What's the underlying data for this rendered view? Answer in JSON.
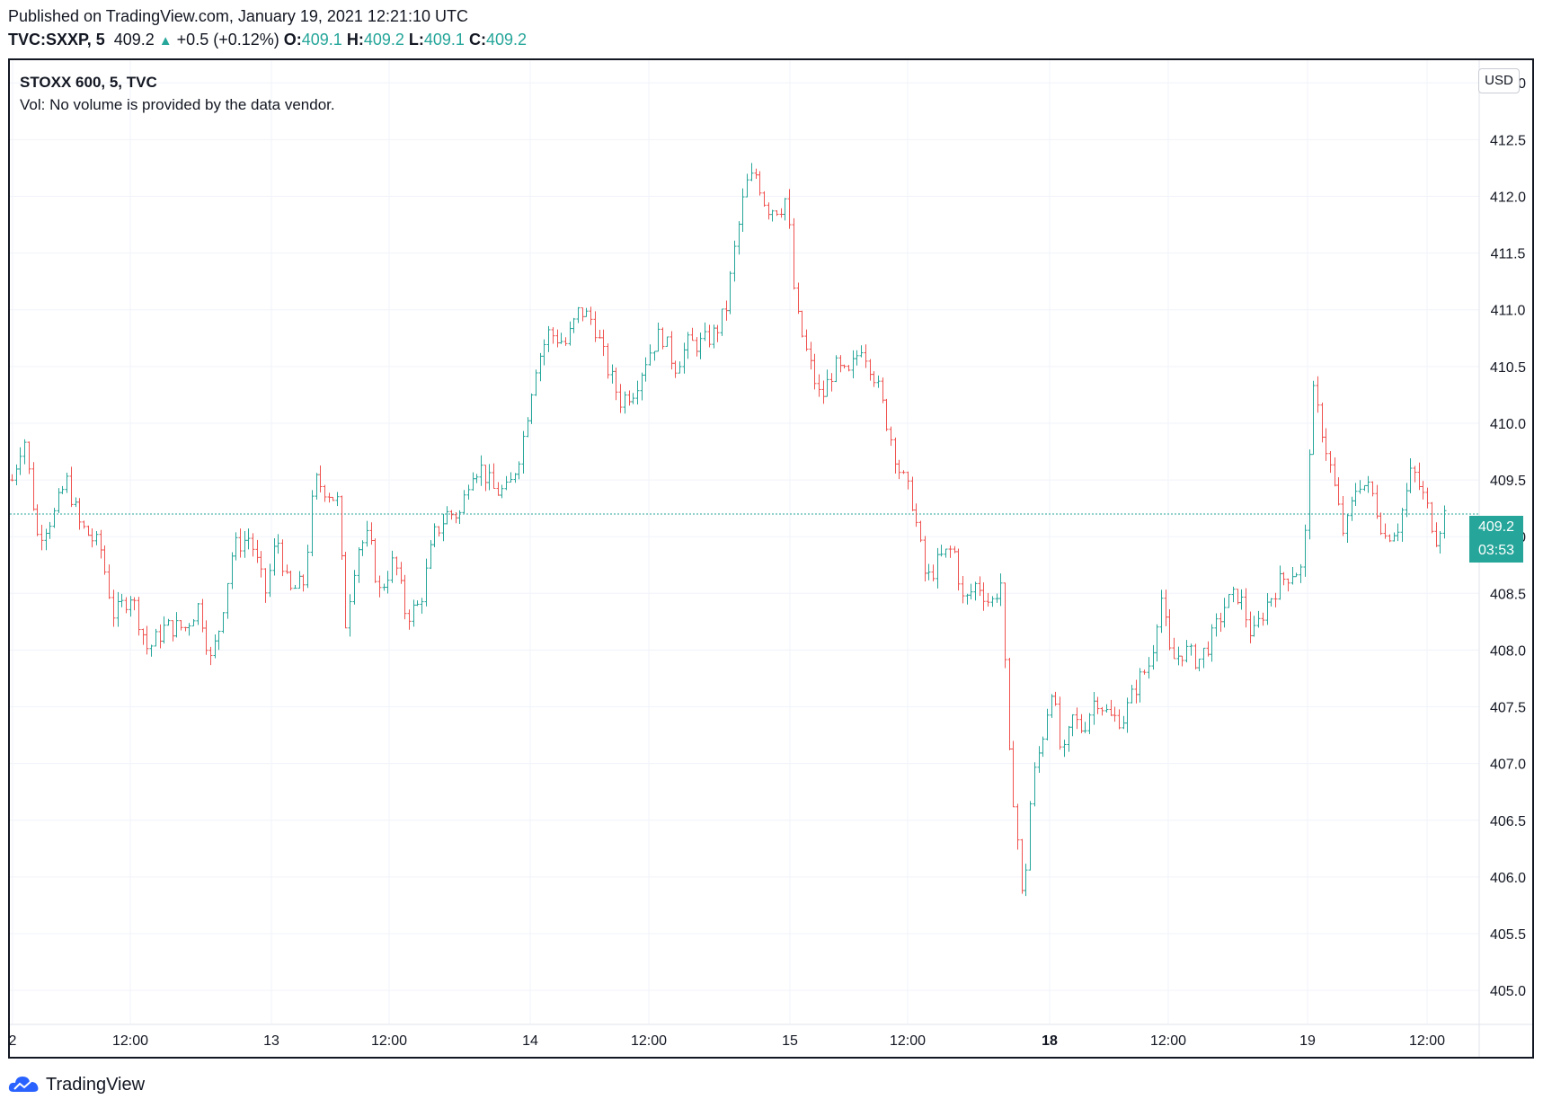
{
  "header": {
    "published": "Published on TradingView.com, January 19, 2021 12:21:10 UTC",
    "symbol": "TVC:SXXP, 5",
    "last": "409.2",
    "change": "+0.5 (+0.12%)",
    "o_label": "O:",
    "o_value": "409.1",
    "h_label": "H:",
    "h_value": "409.2",
    "l_label": "L:",
    "l_value": "409.1",
    "c_label": "C:",
    "c_value": "409.2"
  },
  "legend": {
    "title": "STOXX 600, 5, TVC",
    "volume_note": "Vol: No volume is provided by the data vendor."
  },
  "currency_button": "USD",
  "price_label": "409.2",
  "countdown_label": "03:53",
  "branding": "TradingView",
  "colors": {
    "up": "#26a69a",
    "down": "#ef5350",
    "grid": "#f0f3fa",
    "text": "#131722"
  },
  "chart_data": {
    "type": "ohlc",
    "yaxis": {
      "min": 404.7,
      "max": 413.2,
      "ticks": [
        405.0,
        405.5,
        406.0,
        406.5,
        407.0,
        407.5,
        408.0,
        408.5,
        409.0,
        409.5,
        410.0,
        410.5,
        411.0,
        411.5,
        412.0,
        412.5,
        413.0
      ],
      "position": "right",
      "labels": [
        "405.0",
        "405.5",
        "406.0",
        "406.5",
        "407.0",
        "407.5",
        "408.0",
        "408.5",
        "409.0",
        "409.5",
        "410.0",
        "410.5",
        "411.0",
        "411.5",
        "412.0",
        "412.5",
        "413.0"
      ]
    },
    "xaxis": {
      "ticks": [
        {
          "label": "2",
          "bold": false
        },
        {
          "label": "12:00",
          "bold": false
        },
        {
          "label": "13",
          "bold": false
        },
        {
          "label": "12:00",
          "bold": false
        },
        {
          "label": "14",
          "bold": false
        },
        {
          "label": "12:00",
          "bold": false
        },
        {
          "label": "15",
          "bold": false
        },
        {
          "label": "12:00",
          "bold": false
        },
        {
          "label": "18",
          "bold": true
        },
        {
          "label": "12:00",
          "bold": false
        },
        {
          "label": "19",
          "bold": false
        },
        {
          "label": "12:00",
          "bold": false
        }
      ]
    },
    "current_price": 409.2,
    "price_path": [
      {
        "t": 0.0,
        "p": 409.5
      },
      {
        "t": 0.7,
        "p": 409.9
      },
      {
        "t": 1.5,
        "p": 409.0
      },
      {
        "t": 2.5,
        "p": 409.2
      },
      {
        "t": 3.2,
        "p": 409.5
      },
      {
        "t": 4.0,
        "p": 409.1
      },
      {
        "t": 5.2,
        "p": 408.9
      },
      {
        "t": 6.0,
        "p": 408.3
      },
      {
        "t": 7.0,
        "p": 408.5
      },
      {
        "t": 8.0,
        "p": 408.0
      },
      {
        "t": 9.0,
        "p": 408.2
      },
      {
        "t": 10.2,
        "p": 408.2
      },
      {
        "t": 11.0,
        "p": 408.4
      },
      {
        "t": 11.7,
        "p": 407.9
      },
      {
        "t": 12.2,
        "p": 408.2
      },
      {
        "t": 13.0,
        "p": 408.9
      },
      {
        "t": 14.0,
        "p": 409.0
      },
      {
        "t": 14.9,
        "p": 408.5
      },
      {
        "t": 15.6,
        "p": 409.0
      },
      {
        "t": 16.3,
        "p": 408.5
      },
      {
        "t": 17.2,
        "p": 408.6
      },
      {
        "t": 17.8,
        "p": 409.5
      },
      {
        "t": 18.6,
        "p": 409.4
      },
      {
        "t": 19.2,
        "p": 409.3
      },
      {
        "t": 19.6,
        "p": 408.2
      },
      {
        "t": 20.3,
        "p": 408.9
      },
      {
        "t": 21.0,
        "p": 409.0
      },
      {
        "t": 21.6,
        "p": 408.5
      },
      {
        "t": 22.5,
        "p": 408.8
      },
      {
        "t": 23.2,
        "p": 408.3
      },
      {
        "t": 24.0,
        "p": 408.4
      },
      {
        "t": 24.8,
        "p": 409.0
      },
      {
        "t": 25.6,
        "p": 409.2
      },
      {
        "t": 26.4,
        "p": 409.2
      },
      {
        "t": 27.0,
        "p": 409.6
      },
      {
        "t": 27.6,
        "p": 409.6
      },
      {
        "t": 28.4,
        "p": 409.4
      },
      {
        "t": 29.2,
        "p": 409.4
      },
      {
        "t": 30.0,
        "p": 409.8
      },
      {
        "t": 30.8,
        "p": 410.5
      },
      {
        "t": 31.6,
        "p": 410.8
      },
      {
        "t": 32.6,
        "p": 410.7
      },
      {
        "t": 33.4,
        "p": 411.0
      },
      {
        "t": 34.2,
        "p": 410.9
      },
      {
        "t": 35.0,
        "p": 410.5
      },
      {
        "t": 35.8,
        "p": 410.2
      },
      {
        "t": 36.6,
        "p": 410.3
      },
      {
        "t": 37.4,
        "p": 410.6
      },
      {
        "t": 38.2,
        "p": 410.8
      },
      {
        "t": 39.0,
        "p": 410.5
      },
      {
        "t": 39.8,
        "p": 410.7
      },
      {
        "t": 40.6,
        "p": 410.7
      },
      {
        "t": 41.4,
        "p": 410.8
      },
      {
        "t": 42.0,
        "p": 411.0
      },
      {
        "t": 42.6,
        "p": 411.6
      },
      {
        "t": 43.2,
        "p": 412.1
      },
      {
        "t": 43.8,
        "p": 412.2
      },
      {
        "t": 44.4,
        "p": 411.9
      },
      {
        "t": 45.2,
        "p": 411.9
      },
      {
        "t": 45.6,
        "p": 412.0
      },
      {
        "t": 46.1,
        "p": 411.0
      },
      {
        "t": 46.8,
        "p": 410.6
      },
      {
        "t": 47.6,
        "p": 410.2
      },
      {
        "t": 48.4,
        "p": 410.5
      },
      {
        "t": 49.2,
        "p": 410.4
      },
      {
        "t": 50.0,
        "p": 410.7
      },
      {
        "t": 50.8,
        "p": 410.4
      },
      {
        "t": 51.5,
        "p": 410.0
      },
      {
        "t": 52.2,
        "p": 409.6
      },
      {
        "t": 53.0,
        "p": 409.3
      },
      {
        "t": 53.8,
        "p": 408.6
      },
      {
        "t": 54.6,
        "p": 408.8
      },
      {
        "t": 55.4,
        "p": 408.9
      },
      {
        "t": 56.0,
        "p": 408.4
      },
      {
        "t": 56.8,
        "p": 408.6
      },
      {
        "t": 57.6,
        "p": 408.4
      },
      {
        "t": 58.2,
        "p": 408.6
      },
      {
        "t": 58.7,
        "p": 407.0
      },
      {
        "t": 59.1,
        "p": 406.5
      },
      {
        "t": 59.5,
        "p": 405.7
      },
      {
        "t": 60.0,
        "p": 406.8
      },
      {
        "t": 60.6,
        "p": 407.2
      },
      {
        "t": 61.2,
        "p": 407.7
      },
      {
        "t": 61.8,
        "p": 407.0
      },
      {
        "t": 62.4,
        "p": 407.4
      },
      {
        "t": 63.0,
        "p": 407.3
      },
      {
        "t": 63.8,
        "p": 407.6
      },
      {
        "t": 64.6,
        "p": 407.4
      },
      {
        "t": 65.4,
        "p": 407.4
      },
      {
        "t": 66.2,
        "p": 407.7
      },
      {
        "t": 67.0,
        "p": 407.9
      },
      {
        "t": 67.6,
        "p": 408.5
      },
      {
        "t": 68.2,
        "p": 407.9
      },
      {
        "t": 69.0,
        "p": 408.0
      },
      {
        "t": 69.8,
        "p": 407.9
      },
      {
        "t": 70.6,
        "p": 408.1
      },
      {
        "t": 71.4,
        "p": 408.4
      },
      {
        "t": 72.2,
        "p": 408.5
      },
      {
        "t": 73.0,
        "p": 408.1
      },
      {
        "t": 73.8,
        "p": 408.4
      },
      {
        "t": 74.6,
        "p": 408.6
      },
      {
        "t": 75.4,
        "p": 408.7
      },
      {
        "t": 76.0,
        "p": 408.7
      },
      {
        "t": 76.5,
        "p": 410.3
      },
      {
        "t": 77.0,
        "p": 410.0
      },
      {
        "t": 77.6,
        "p": 409.6
      },
      {
        "t": 78.4,
        "p": 409.0
      },
      {
        "t": 79.2,
        "p": 409.5
      },
      {
        "t": 80.0,
        "p": 409.4
      },
      {
        "t": 80.8,
        "p": 409.0
      },
      {
        "t": 81.6,
        "p": 409.1
      },
      {
        "t": 82.4,
        "p": 409.6
      },
      {
        "t": 83.2,
        "p": 409.3
      },
      {
        "t": 83.8,
        "p": 409.0
      },
      {
        "t": 84.3,
        "p": 409.2
      }
    ],
    "bar_count": 340
  }
}
